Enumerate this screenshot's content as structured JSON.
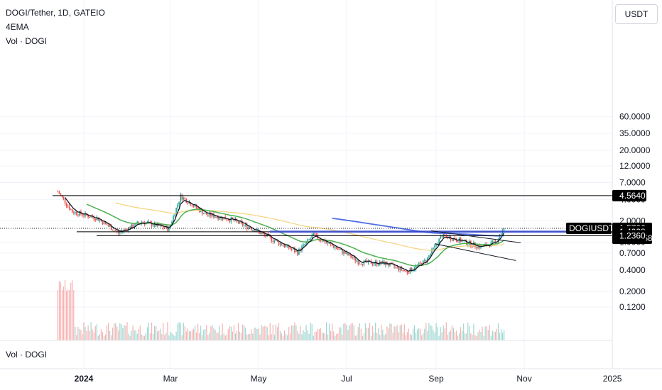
{
  "header": {
    "symbol_line": "DOGI/Tether, 1D, GATEIO",
    "indicator": "4EMA",
    "volume": "Vol · DOGI"
  },
  "currency_button": "USDT",
  "volume_pane_label": "Vol · DOGI",
  "colors": {
    "up": "#26a69a",
    "down": "#ef5350",
    "ema_fast": "#131722",
    "ema_mid": "#4caf50",
    "ema_slow": "#f5d37b",
    "ema_long": "#4f6fe6",
    "zone": "#3b4fe4",
    "level": "#000000",
    "tag_bg": "#000000"
  },
  "chart_data": {
    "type": "candlestick",
    "title": "DOGI/Tether, 1D, GATEIO",
    "y_scale": "log",
    "y_ticks": [
      "60.0000",
      "35.0000",
      "20.0000",
      "12.0000",
      "7.0000",
      "4.0000",
      "2.0000",
      "1.0000",
      "0.7000",
      "0.4000",
      "0.2000",
      "0.1200"
    ],
    "x_ticks": [
      "2024",
      "Mar",
      "May",
      "Jul",
      "Sep",
      "Nov",
      "2025"
    ],
    "price_tags": [
      {
        "label": "4.5640",
        "value": 4.564
      },
      {
        "label": "DOGIUSDT",
        "value": 1.5706
      },
      {
        "label": "1.5706",
        "value": 1.5706,
        "sub": "16:20:58"
      },
      {
        "label": "1.4028",
        "value": 1.4028
      },
      {
        "label": "1.2360",
        "value": 1.236
      }
    ],
    "horizontal_levels": [
      4.564,
      1.4028,
      1.236
    ],
    "resistance_zone": [
      1.36,
      1.46
    ],
    "last_price": 1.5706,
    "ohlc_anchor_closes": [
      {
        "date": "2023-12-14",
        "close": 5.2
      },
      {
        "date": "2023-12-24",
        "close": 2.7
      },
      {
        "date": "2024-01-10",
        "close": 2.2
      },
      {
        "date": "2024-01-25",
        "close": 1.35
      },
      {
        "date": "2024-02-10",
        "close": 1.95
      },
      {
        "date": "2024-02-29",
        "close": 1.55
      },
      {
        "date": "2024-03-08",
        "close": 4.5
      },
      {
        "date": "2024-03-25",
        "close": 2.5
      },
      {
        "date": "2024-04-12",
        "close": 2.1
      },
      {
        "date": "2024-04-28",
        "close": 1.5
      },
      {
        "date": "2024-05-12",
        "close": 1.05
      },
      {
        "date": "2024-05-28",
        "close": 0.72
      },
      {
        "date": "2024-06-08",
        "close": 1.25
      },
      {
        "date": "2024-06-25",
        "close": 0.8
      },
      {
        "date": "2024-07-10",
        "close": 0.52
      },
      {
        "date": "2024-07-28",
        "close": 0.5
      },
      {
        "date": "2024-08-12",
        "close": 0.38
      },
      {
        "date": "2024-08-25",
        "close": 0.55
      },
      {
        "date": "2024-09-05",
        "close": 1.25
      },
      {
        "date": "2024-09-18",
        "close": 1.05
      },
      {
        "date": "2024-10-02",
        "close": 0.85
      },
      {
        "date": "2024-10-12",
        "close": 1.0
      },
      {
        "date": "2024-10-18",
        "close": 1.5706
      }
    ]
  }
}
